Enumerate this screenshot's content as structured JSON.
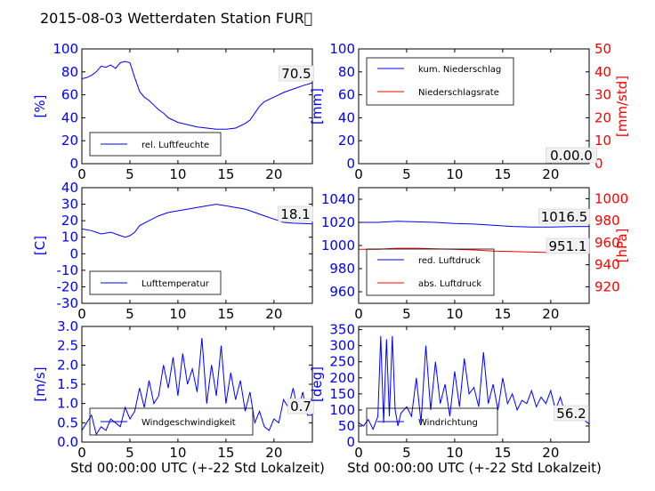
{
  "title": "2015-08-03 Wetterdaten Station FUR\u0000",
  "xlabel": "Std 00:00:00 UTC (+-22 Std Lokalzeit)",
  "colors": {
    "blue": "#0000ff",
    "red": "#ff0000",
    "lightblue": "#7777ff",
    "grid": "#000000"
  },
  "chart_data": [
    {
      "id": "humidity",
      "type": "line",
      "xlim": [
        0,
        24
      ],
      "xticks": [
        0,
        5,
        10,
        15,
        20
      ],
      "ylim": [
        0,
        100
      ],
      "yticks": [
        0,
        20,
        40,
        60,
        80,
        100
      ],
      "ylabel": "[%]",
      "ylabel_color": "#0000ff",
      "legend": {
        "placement": "lower-left",
        "entries": [
          "rel. Luftfeuchte"
        ]
      },
      "annotation": "70.5",
      "series": [
        {
          "name": "rel. Luftfeuchte",
          "color": "#0000ff",
          "x": [
            0,
            0.5,
            1,
            1.5,
            2,
            2.5,
            3,
            3.5,
            4,
            4.5,
            5,
            5.5,
            6,
            6.5,
            7,
            7.5,
            8,
            8.5,
            9,
            9.5,
            10,
            11,
            12,
            13,
            14,
            15,
            16,
            17,
            17.5,
            18,
            18.5,
            19,
            20,
            21,
            22,
            23,
            24
          ],
          "y": [
            74,
            75,
            77,
            80,
            85,
            84,
            86,
            83,
            88,
            89,
            88,
            75,
            63,
            58,
            55,
            51,
            47,
            44,
            40,
            38,
            36,
            34,
            32,
            31,
            30,
            30,
            31,
            35,
            38,
            44,
            50,
            54,
            58,
            62,
            65,
            68,
            70.5
          ]
        }
      ]
    },
    {
      "id": "precip",
      "type": "line",
      "xlim": [
        0,
        24
      ],
      "xticks": [
        0,
        5,
        10,
        15,
        20
      ],
      "ylim": [
        0,
        100
      ],
      "yticks": [
        0,
        20,
        40,
        60,
        80,
        100
      ],
      "ylabel": "[mm]",
      "ylabel_color": "#0000ff",
      "y2lim": [
        0,
        50
      ],
      "y2ticks": [
        0,
        10,
        20,
        30,
        40,
        50
      ],
      "y2label": "[mm/std]",
      "y2label_color": "#ff0000",
      "legend": {
        "placement": "upper-left",
        "entries": [
          "kum. Niederschlag",
          "Niederschlagsrate"
        ]
      },
      "annotation": "0.00.0",
      "series": [
        {
          "name": "kum. Niederschlag",
          "color": "#0000ff",
          "axis": "y",
          "x": [
            0,
            24
          ],
          "y": [
            0,
            0
          ]
        },
        {
          "name": "Niederschlagsrate",
          "color": "#ff0000",
          "axis": "y2",
          "x": [
            0,
            24
          ],
          "y": [
            0,
            0
          ]
        }
      ]
    },
    {
      "id": "temperature",
      "type": "line",
      "xlim": [
        0,
        24
      ],
      "xticks": [
        0,
        5,
        10,
        15,
        20
      ],
      "ylim": [
        -30,
        40
      ],
      "yticks": [
        -30,
        -20,
        -10,
        0,
        10,
        20,
        30,
        40
      ],
      "ylabel": "[C]",
      "ylabel_color": "#0000ff",
      "legend": {
        "placement": "lower-left",
        "entries": [
          "Lufttemperatur"
        ]
      },
      "annotation": "18.1",
      "series": [
        {
          "name": "Lufttemperatur",
          "color": "#0000ff",
          "x": [
            0,
            1,
            1.5,
            2,
            3,
            3.5,
            4,
            4.5,
            5,
            5.5,
            6,
            7,
            8,
            9,
            10,
            11,
            12,
            13,
            14,
            15,
            16,
            17,
            18,
            19,
            20,
            21,
            22,
            23,
            24
          ],
          "y": [
            15,
            14,
            13,
            12,
            13,
            12,
            11,
            10,
            11,
            13,
            17,
            20,
            23,
            25,
            26,
            27,
            28,
            29,
            30,
            29,
            28,
            27,
            25,
            23,
            21,
            19,
            18.5,
            18.3,
            18.1
          ]
        }
      ]
    },
    {
      "id": "pressure",
      "type": "line",
      "xlim": [
        0,
        24
      ],
      "xticks": [
        0,
        5,
        10,
        15,
        20
      ],
      "ylim": [
        950,
        1050
      ],
      "yticks": [
        960,
        980,
        1000,
        1020,
        1040
      ],
      "y2lim": [
        905,
        1010
      ],
      "y2ticks": [
        920,
        940,
        960,
        980,
        1000
      ],
      "y2label": "[hPa]",
      "y2label_color": "#ff0000",
      "legend": {
        "placement": "lower-left",
        "entries": [
          "red. Luftdruck",
          "abs. Luftdruck"
        ]
      },
      "annotation": "1016.5",
      "annotation2": "951.1",
      "series": [
        {
          "name": "red. Luftdruck",
          "color": "#0000ff",
          "axis": "y",
          "x": [
            0,
            2,
            4,
            6,
            8,
            10,
            12,
            14,
            16,
            18,
            20,
            22,
            24
          ],
          "y": [
            1020,
            1020,
            1021,
            1020.5,
            1020,
            1019,
            1018.5,
            1017.5,
            1016.5,
            1016,
            1016,
            1016.3,
            1016.5
          ]
        },
        {
          "name": "abs. Luftdruck",
          "color": "#ff0000",
          "axis": "y2",
          "x": [
            0,
            2,
            4,
            6,
            8,
            10,
            12,
            14,
            16,
            18,
            20,
            22,
            24
          ],
          "y": [
            954,
            954,
            955,
            955,
            954.5,
            954,
            953.5,
            952.5,
            952,
            951.5,
            951,
            951,
            951.1
          ]
        }
      ]
    },
    {
      "id": "wind_speed",
      "type": "line",
      "xlim": [
        0,
        24
      ],
      "xticks": [
        0,
        5,
        10,
        15,
        20
      ],
      "ylim": [
        0,
        3.0
      ],
      "yticks": [
        0.0,
        0.5,
        1.0,
        1.5,
        2.0,
        2.5,
        3.0
      ],
      "ylabel": "[m/s]",
      "ylabel_color": "#0000ff",
      "legend": {
        "placement": "lower-left",
        "entries": [
          "Windgeschwindigkeit"
        ]
      },
      "annotation": "0.7",
      "series": [
        {
          "name": "Windgeschwindigkeit",
          "color": "#0000ff",
          "x": [
            0,
            0.5,
            1,
            1.5,
            2,
            2.5,
            3,
            3.5,
            4,
            4.5,
            5,
            5.5,
            6,
            6.5,
            7,
            7.5,
            8,
            8.5,
            9,
            9.5,
            10,
            10.5,
            11,
            11.5,
            12,
            12.5,
            13,
            13.5,
            14,
            14.5,
            15,
            15.5,
            16,
            16.5,
            17,
            17.5,
            18,
            18.5,
            19,
            19.5,
            20,
            20.5,
            21,
            21.5,
            22,
            22.5,
            23,
            23.5,
            24
          ],
          "y": [
            0.3,
            0.5,
            0.7,
            0.2,
            0.4,
            0.3,
            0.6,
            0.5,
            0.4,
            0.9,
            0.6,
            0.8,
            1.4,
            0.9,
            1.6,
            1.0,
            1.2,
            2.0,
            1.4,
            2.2,
            1.2,
            2.3,
            1.5,
            1.9,
            1.3,
            2.7,
            1.0,
            2.0,
            1.2,
            2.5,
            1.0,
            1.8,
            1.1,
            1.6,
            0.8,
            1.3,
            0.5,
            0.8,
            0.4,
            0.3,
            0.6,
            0.5,
            1.1,
            0.9,
            1.4,
            0.8,
            1.3,
            0.7,
            0.7
          ]
        }
      ]
    },
    {
      "id": "wind_dir",
      "type": "line",
      "xlim": [
        0,
        24
      ],
      "xticks": [
        0,
        5,
        10,
        15,
        20
      ],
      "ylim": [
        0,
        360
      ],
      "yticks": [
        0,
        50,
        100,
        150,
        200,
        250,
        300,
        350
      ],
      "ylabel": "[deg]",
      "ylabel_color": "#0000ff",
      "legend": {
        "placement": "lower-left",
        "entries": [
          "Windrichtung"
        ]
      },
      "annotation": "56.2",
      "series": [
        {
          "name": "Windrichtung",
          "color": "#0000ff",
          "x": [
            0,
            0.5,
            1,
            1.5,
            2,
            2.3,
            2.6,
            2.9,
            3.2,
            3.5,
            3.8,
            4.1,
            4.4,
            5,
            5.5,
            6,
            6.5,
            7,
            7.5,
            8,
            8.5,
            9,
            9.5,
            10,
            10.5,
            11,
            11.5,
            12,
            12.5,
            13,
            13.5,
            14,
            14.5,
            15,
            15.5,
            16,
            16.5,
            17,
            17.5,
            18,
            18.5,
            19,
            19.5,
            20,
            20.5,
            21,
            21.5,
            22,
            23,
            24
          ],
          "y": [
            60,
            50,
            70,
            40,
            80,
            330,
            60,
            320,
            80,
            330,
            100,
            50,
            90,
            110,
            80,
            200,
            60,
            300,
            100,
            250,
            120,
            180,
            80,
            220,
            110,
            260,
            150,
            170,
            110,
            280,
            120,
            180,
            100,
            200,
            120,
            150,
            100,
            130,
            120,
            160,
            110,
            140,
            120,
            160,
            100,
            140,
            90,
            80,
            80,
            56.2
          ]
        }
      ]
    }
  ]
}
